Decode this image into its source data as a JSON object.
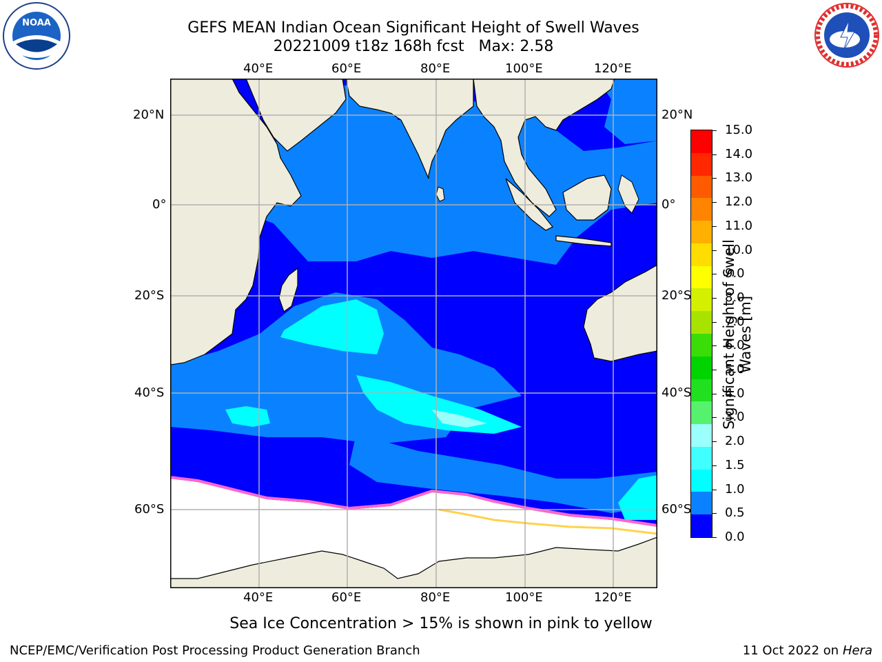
{
  "header": {
    "title_line1": "GEFS MEAN Indian Ocean Significant Height of Swell Waves",
    "title_line2": "20221009 t18z 168h fcst   Max: 2.58"
  },
  "logos": {
    "left": "noaa-logo",
    "right": "national-weather-service-logo"
  },
  "map": {
    "region": "Indian Ocean",
    "lon_range": [
      20,
      130
    ],
    "lat_range": [
      -72,
      28
    ],
    "lon_ticks_top": [
      "40°E",
      "60°E",
      "80°E",
      "100°E",
      "120°E"
    ],
    "lon_ticks_bottom": [
      "40°E",
      "60°E",
      "80°E",
      "100°E",
      "120°E"
    ],
    "lat_ticks_left": [
      "20°N",
      "0°",
      "20°S",
      "40°S",
      "60°S"
    ],
    "lat_ticks_right": [
      "20°N",
      "0°",
      "20°S",
      "40°S",
      "60°S"
    ],
    "colors": {
      "land": "#eeecdc",
      "ice": "#ffffff",
      "sea_ice_pink": "#ff66cc",
      "sea_ice_yellow": "#ffd24d",
      "grid": "#b0b0b0"
    }
  },
  "colorbar": {
    "labels": [
      "15.0",
      "14.0",
      "13.0",
      "12.0",
      "11.0",
      "10.0",
      "9.0",
      "8.0",
      "7.0",
      "6.0",
      "5.0",
      "4.0",
      "3.0",
      "2.0",
      "1.5",
      "1.0",
      "0.5",
      "0.0"
    ],
    "colors_bottom_to_top": [
      "#0000ff",
      "#0a82ff",
      "#00ffff",
      "#40ffff",
      "#9bfffb",
      "#56f26d",
      "#20e020",
      "#00d400",
      "#3bdd08",
      "#a8e300",
      "#d4f000",
      "#ffff00",
      "#ffdd00",
      "#ffb000",
      "#ff8400",
      "#ff5a00",
      "#ff2800",
      "#ff0000"
    ],
    "title": "Significant Height of Swell Waves [m]"
  },
  "footnote": "Sea Ice Concentration > 15% is shown in pink to yellow",
  "footer": {
    "credit": "NCEP/EMC/Verification Post Processing Product Generation Branch",
    "date": "11 Oct 2022 on ",
    "machine": "Hera"
  }
}
